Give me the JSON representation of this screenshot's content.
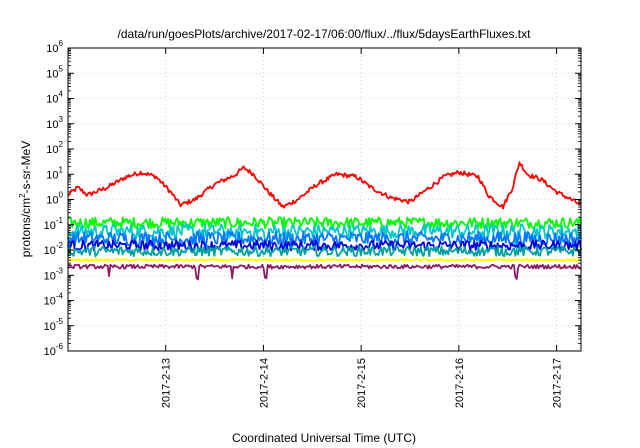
{
  "chart_data": {
    "type": "line",
    "title": "/data/run/goesPlots/archive/2017-02-17/06:00/flux/../flux/5daysEarthFluxes.txt",
    "xlabel": "Coordinated Universal Time (UTC)",
    "ylabel": "protons/cm²-s-sr-MeV",
    "ylabel_parts": {
      "prefix": "protons/cm",
      "superscript": "2",
      "suffix": "-s-sr-MeV"
    },
    "yscale": "log",
    "ylim_exponents": [
      -6,
      6
    ],
    "y_tick_base": "10",
    "y_tick_exponents": [
      "-6",
      "-5",
      "-4",
      "-3",
      "-2",
      "-1",
      "0",
      "1",
      "2",
      "3",
      "4",
      "5",
      "6"
    ],
    "xlim_days": [
      0.0,
      5.25
    ],
    "x_tick_labels": [
      "2017-2-13",
      "2017-2-14",
      "2017-2-15",
      "2017-2-16",
      "2017-2-17"
    ],
    "x_tick_days": [
      1,
      2,
      3,
      4,
      5
    ],
    "grid": true,
    "legend": "none",
    "series": [
      {
        "color": "#ff0000",
        "kind": "diurnal",
        "x": [
          0.0,
          0.1,
          0.2,
          0.4,
          0.6,
          0.75,
          0.9,
          1.05,
          1.15,
          1.3,
          1.5,
          1.7,
          1.8,
          1.9,
          2.05,
          2.2,
          2.35,
          2.55,
          2.75,
          2.95,
          3.1,
          3.3,
          3.5,
          3.7,
          3.85,
          4.0,
          4.2,
          4.3,
          4.45,
          4.55,
          4.62,
          4.7,
          4.85,
          5.0,
          5.15,
          5.25
        ],
        "values": [
          1.5,
          3.0,
          1.5,
          3.0,
          8.0,
          12.0,
          8.0,
          2.0,
          0.6,
          1.0,
          4.0,
          9.0,
          18.0,
          10.0,
          2.0,
          0.5,
          1.0,
          4.0,
          10.0,
          8.0,
          3.0,
          1.2,
          0.8,
          3.0,
          8.0,
          12.0,
          8.0,
          1.5,
          0.5,
          3.0,
          30.0,
          10.0,
          6.0,
          2.0,
          1.0,
          0.6
        ]
      },
      {
        "color": "#00ff00",
        "kind": "noisy",
        "level": 0.12,
        "spread": 0.22,
        "dips": []
      },
      {
        "color": "#00c8c8",
        "kind": "noisy",
        "level": 0.055,
        "spread": 0.28,
        "dips": [
          1.3,
          1.7,
          2.02,
          4.58
        ]
      },
      {
        "color": "#0078ff",
        "kind": "noisy",
        "level": 0.028,
        "spread": 0.28,
        "dips": []
      },
      {
        "color": "#0000dc",
        "kind": "noisy",
        "level": 0.015,
        "spread": 0.2,
        "dips": []
      },
      {
        "color": "#00a0a0",
        "kind": "noisy",
        "level": 0.009,
        "spread": 0.2,
        "dips": []
      },
      {
        "color": "#ffff00",
        "kind": "noisy",
        "level": 0.004,
        "spread": 0.05,
        "dips": []
      },
      {
        "color": "#8b1c62",
        "kind": "noisy",
        "level": 0.0022,
        "spread": 0.08,
        "dips": [
          0.42,
          1.32,
          1.68,
          2.02,
          4.58
        ]
      }
    ]
  }
}
